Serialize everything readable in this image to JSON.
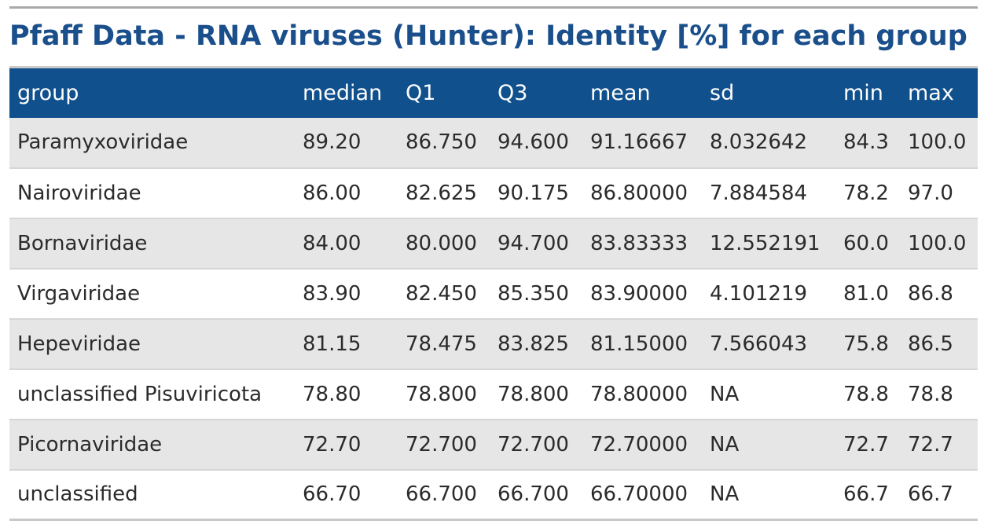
{
  "title": "Pfaff Data - RNA viruses (Hunter): Identity [%] for each group",
  "colors": {
    "header_bg": "#10508c",
    "title": "#1a4f8b",
    "row_alt": "#e6e6e6"
  },
  "chart_data": {
    "type": "table",
    "title": "Pfaff Data - RNA viruses (Hunter): Identity [%] for each group",
    "columns": [
      "group",
      "median",
      "Q1",
      "Q3",
      "mean",
      "sd",
      "min",
      "max"
    ],
    "rows": [
      [
        "Paramyxoviridae",
        "89.20",
        "86.750",
        "94.600",
        "91.16667",
        "8.032642",
        "84.3",
        "100.0"
      ],
      [
        "Nairoviridae",
        "86.00",
        "82.625",
        "90.175",
        "86.80000",
        "7.884584",
        "78.2",
        "97.0"
      ],
      [
        "Bornaviridae",
        "84.00",
        "80.000",
        "94.700",
        "83.83333",
        "12.552191",
        "60.0",
        "100.0"
      ],
      [
        "Virgaviridae",
        "83.90",
        "82.450",
        "85.350",
        "83.90000",
        "4.101219",
        "81.0",
        "86.8"
      ],
      [
        "Hepeviridae",
        "81.15",
        "78.475",
        "83.825",
        "81.15000",
        "7.566043",
        "75.8",
        "86.5"
      ],
      [
        "unclassified Pisuviricota",
        "78.80",
        "78.800",
        "78.800",
        "78.80000",
        "NA",
        "78.8",
        "78.8"
      ],
      [
        "Picornaviridae",
        "72.70",
        "72.700",
        "72.700",
        "72.70000",
        "NA",
        "72.7",
        "72.7"
      ],
      [
        "unclassified",
        "66.70",
        "66.700",
        "66.700",
        "66.70000",
        "NA",
        "66.7",
        "66.7"
      ]
    ]
  }
}
